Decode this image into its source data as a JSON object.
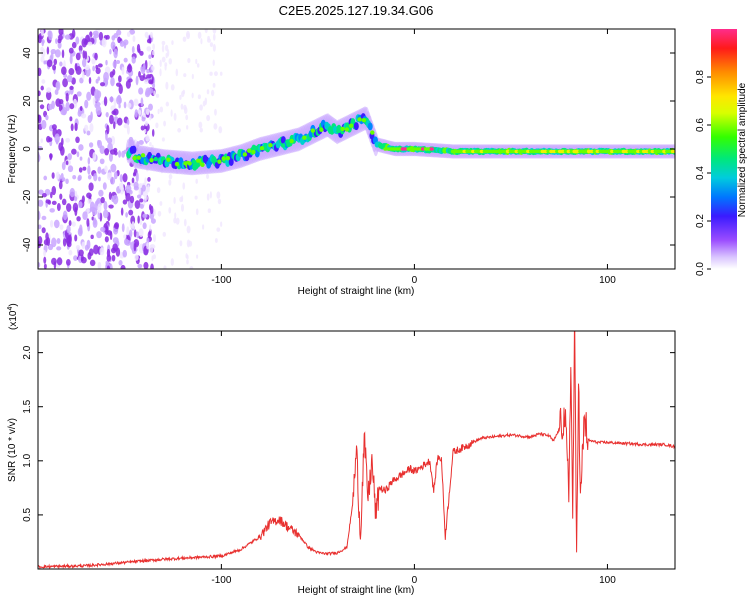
{
  "figure": {
    "title": "C2E5.2025.127.19.34.G06"
  },
  "chart_data": [
    {
      "type": "heatmap",
      "xlabel": "Height of straight line (km)",
      "ylabel": "Frequency (Hz)",
      "xlim": [
        -195,
        135
      ],
      "ylim": [
        -50,
        50
      ],
      "xticks": [
        -100,
        0,
        100
      ],
      "yticks": [
        40,
        20,
        0,
        -20,
        -40
      ],
      "colorbar": {
        "label": "Normalized spectral amplitude",
        "range": [
          0.0,
          1.0
        ],
        "ticks": [
          0.0,
          0.2,
          0.4,
          0.6,
          0.8
        ],
        "colors": [
          "#f0e8ff",
          "#c9a6ff",
          "#8a2be2",
          "#2a1bff",
          "#0096ff",
          "#00e0e0",
          "#00ff66",
          "#c8ff00",
          "#ffff00",
          "#ff9900",
          "#ff1a1a",
          "#ff2d8c"
        ]
      },
      "trace": {
        "description_points": [
          [
            -145,
            -3
          ],
          [
            -130,
            -5
          ],
          [
            -115,
            -6
          ],
          [
            -100,
            -5
          ],
          [
            -90,
            -3
          ],
          [
            -80,
            0
          ],
          [
            -70,
            2
          ],
          [
            -60,
            4
          ],
          [
            -55,
            6
          ],
          [
            -50,
            8
          ],
          [
            -45,
            10
          ],
          [
            -40,
            7
          ],
          [
            -35,
            9
          ],
          [
            -30,
            11
          ],
          [
            -25,
            13
          ],
          [
            -20,
            2
          ],
          [
            -10,
            0
          ],
          [
            0,
            0
          ],
          [
            20,
            -1
          ],
          [
            40,
            -1
          ],
          [
            60,
            -1
          ],
          [
            80,
            -1
          ],
          [
            100,
            -1
          ],
          [
            120,
            -1
          ],
          [
            135,
            -1
          ]
        ],
        "peak_segments": [
          {
            "x": [
              -15,
              10
            ],
            "y": 0,
            "amp": 1.0
          },
          {
            "x": [
              75,
              90
            ],
            "y": -1,
            "amp": 0.9
          },
          {
            "x": [
              20,
              135
            ],
            "y": -1,
            "amp": 0.75
          }
        ]
      }
    },
    {
      "type": "line",
      "xlabel": "Height of straight line (km)",
      "ylabel": "SNR (10 * v/v)",
      "y_multiplier": "(x10",
      "y_multiplier_exp": "4",
      "y_multiplier_close": ")",
      "xlim": [
        -195,
        135
      ],
      "ylim": [
        0,
        22000
      ],
      "xticks": [
        -100,
        0,
        100
      ],
      "yticks": [
        5000,
        10000,
        15000,
        20000
      ],
      "ytick_labels": [
        "0.5",
        "1.0",
        "1.5",
        "2.0"
      ],
      "color": "#e8302f",
      "series": [
        {
          "x": [
            -195,
            -170,
            -150,
            -130,
            -110,
            -100,
            -90,
            -80,
            -75,
            -70,
            -65,
            -60,
            -55,
            -50,
            -45,
            -40,
            -35,
            -32,
            -30,
            -28,
            -26,
            -24,
            -22,
            -20,
            -18,
            -15,
            -12,
            -10,
            -6,
            -2,
            0,
            4,
            8,
            10,
            12,
            14,
            16,
            20,
            25,
            30,
            35,
            40,
            50,
            60,
            65,
            70,
            72,
            75,
            78,
            80,
            81,
            82,
            83,
            84,
            85,
            86,
            88,
            90,
            95,
            100,
            110,
            120,
            130,
            135
          ],
          "y": [
            200,
            300,
            600,
            900,
            1100,
            1200,
            1800,
            3000,
            4200,
            4600,
            3800,
            3200,
            2000,
            1500,
            1400,
            1500,
            2000,
            6000,
            11000,
            3000,
            12000,
            6500,
            10000,
            5000,
            7500,
            7200,
            8000,
            8300,
            8800,
            9300,
            9000,
            9500,
            10000,
            7200,
            10300,
            10200,
            3000,
            10800,
            11200,
            11700,
            12100,
            12200,
            12400,
            12200,
            12500,
            12300,
            11800,
            12900,
            14000,
            7000,
            19500,
            5000,
            22500,
            1000,
            18000,
            6000,
            14000,
            11900,
            11700,
            11700,
            11600,
            11500,
            11500,
            11300
          ]
        }
      ]
    }
  ]
}
